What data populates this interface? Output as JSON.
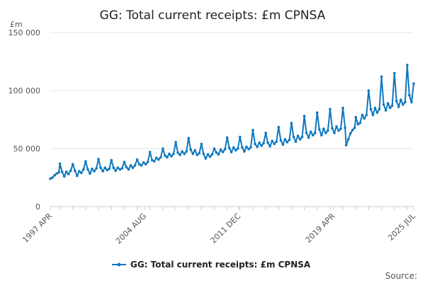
{
  "chart_data": {
    "type": "line",
    "title": "GG: Total current receipts: £m CPNSA",
    "y_unit": "£m",
    "ylim": [
      0,
      150000
    ],
    "yticks": [
      0,
      50000,
      100000,
      150000
    ],
    "ytick_labels": [
      "0",
      "50 000",
      "100 000",
      "150 000"
    ],
    "x_range": [
      "1997-04",
      "2025-07"
    ],
    "xtick_labels": [
      {
        "date": "1997-04",
        "label": "1997 APR"
      },
      {
        "date": "2004-08",
        "label": "2004 AUG"
      },
      {
        "date": "2011-12",
        "label": "2011 DEC"
      },
      {
        "date": "2019-04",
        "label": "2019 APR"
      },
      {
        "date": "2025-07",
        "label": "2025 JUL"
      }
    ],
    "grid": true,
    "legend_position": "bottom",
    "series": [
      {
        "name": "GG: Total current receipts: £m CPNSA",
        "color": "#0f78be",
        "points": [
          [
            "1997-04",
            24000
          ],
          [
            "1997-06",
            25000
          ],
          [
            "1997-08",
            27000
          ],
          [
            "1997-10",
            28500
          ],
          [
            "1997-12",
            29500
          ],
          [
            "1998-01",
            37000
          ],
          [
            "1998-03",
            30000
          ],
          [
            "1998-05",
            26000
          ],
          [
            "1998-07",
            30000
          ],
          [
            "1998-09",
            28000
          ],
          [
            "1998-11",
            31000
          ],
          [
            "1999-01",
            36500
          ],
          [
            "1999-03",
            31000
          ],
          [
            "1999-05",
            26500
          ],
          [
            "1999-07",
            30500
          ],
          [
            "1999-09",
            29000
          ],
          [
            "1999-11",
            32000
          ],
          [
            "2000-01",
            39000
          ],
          [
            "2000-03",
            32000
          ],
          [
            "2000-05",
            28500
          ],
          [
            "2000-07",
            32500
          ],
          [
            "2000-09",
            30500
          ],
          [
            "2000-11",
            33000
          ],
          [
            "2001-01",
            41000
          ],
          [
            "2001-03",
            33500
          ],
          [
            "2001-05",
            30500
          ],
          [
            "2001-07",
            33500
          ],
          [
            "2001-09",
            31500
          ],
          [
            "2001-11",
            32500
          ],
          [
            "2002-01",
            40000
          ],
          [
            "2002-03",
            33500
          ],
          [
            "2002-05",
            31000
          ],
          [
            "2002-07",
            33500
          ],
          [
            "2002-09",
            32000
          ],
          [
            "2002-11",
            33000
          ],
          [
            "2003-01",
            38500
          ],
          [
            "2003-03",
            34000
          ],
          [
            "2003-05",
            32000
          ],
          [
            "2003-07",
            35500
          ],
          [
            "2003-09",
            33500
          ],
          [
            "2003-11",
            35500
          ],
          [
            "2004-01",
            40500
          ],
          [
            "2004-03",
            36500
          ],
          [
            "2004-05",
            35500
          ],
          [
            "2004-07",
            38000
          ],
          [
            "2004-09",
            36500
          ],
          [
            "2004-11",
            38500
          ],
          [
            "2005-01",
            47000
          ],
          [
            "2005-03",
            40000
          ],
          [
            "2005-05",
            39000
          ],
          [
            "2005-07",
            42000
          ],
          [
            "2005-09",
            40500
          ],
          [
            "2005-11",
            42500
          ],
          [
            "2006-01",
            50000
          ],
          [
            "2006-03",
            44000
          ],
          [
            "2006-05",
            42500
          ],
          [
            "2006-07",
            45500
          ],
          [
            "2006-09",
            43500
          ],
          [
            "2006-11",
            45500
          ],
          [
            "2007-01",
            55500
          ],
          [
            "2007-03",
            46500
          ],
          [
            "2007-05",
            44500
          ],
          [
            "2007-07",
            47500
          ],
          [
            "2007-09",
            45500
          ],
          [
            "2007-11",
            47500
          ],
          [
            "2008-01",
            59000
          ],
          [
            "2008-03",
            49000
          ],
          [
            "2008-05",
            45500
          ],
          [
            "2008-07",
            48500
          ],
          [
            "2008-09",
            44500
          ],
          [
            "2008-11",
            46000
          ],
          [
            "2009-01",
            54000
          ],
          [
            "2009-03",
            45500
          ],
          [
            "2009-05",
            41500
          ],
          [
            "2009-07",
            45000
          ],
          [
            "2009-09",
            43000
          ],
          [
            "2009-11",
            45000
          ],
          [
            "2010-01",
            50000
          ],
          [
            "2010-03",
            46500
          ],
          [
            "2010-05",
            45000
          ],
          [
            "2010-07",
            49000
          ],
          [
            "2010-09",
            47000
          ],
          [
            "2010-11",
            49500
          ],
          [
            "2011-01",
            59500
          ],
          [
            "2011-03",
            50500
          ],
          [
            "2011-05",
            47000
          ],
          [
            "2011-07",
            51000
          ],
          [
            "2011-09",
            48500
          ],
          [
            "2011-11",
            50000
          ],
          [
            "2012-01",
            60000
          ],
          [
            "2012-03",
            51000
          ],
          [
            "2012-05",
            47500
          ],
          [
            "2012-07",
            51500
          ],
          [
            "2012-09",
            49500
          ],
          [
            "2012-11",
            51000
          ],
          [
            "2013-01",
            66000
          ],
          [
            "2013-03",
            54000
          ],
          [
            "2013-05",
            51500
          ],
          [
            "2013-07",
            55000
          ],
          [
            "2013-09",
            52500
          ],
          [
            "2013-11",
            54500
          ],
          [
            "2014-01",
            63500
          ],
          [
            "2014-03",
            55000
          ],
          [
            "2014-05",
            52000
          ],
          [
            "2014-07",
            56500
          ],
          [
            "2014-09",
            54000
          ],
          [
            "2014-11",
            56000
          ],
          [
            "2015-01",
            68500
          ],
          [
            "2015-03",
            57000
          ],
          [
            "2015-05",
            53500
          ],
          [
            "2015-07",
            58000
          ],
          [
            "2015-09",
            55500
          ],
          [
            "2015-11",
            57500
          ],
          [
            "2016-01",
            72000
          ],
          [
            "2016-03",
            60000
          ],
          [
            "2016-05",
            56000
          ],
          [
            "2016-07",
            61000
          ],
          [
            "2016-09",
            58000
          ],
          [
            "2016-11",
            60000
          ],
          [
            "2017-01",
            78000
          ],
          [
            "2017-03",
            63500
          ],
          [
            "2017-05",
            59500
          ],
          [
            "2017-07",
            64500
          ],
          [
            "2017-09",
            61500
          ],
          [
            "2017-11",
            63500
          ],
          [
            "2018-01",
            81000
          ],
          [
            "2018-03",
            66500
          ],
          [
            "2018-05",
            61500
          ],
          [
            "2018-07",
            67000
          ],
          [
            "2018-09",
            63500
          ],
          [
            "2018-11",
            65500
          ],
          [
            "2019-01",
            84000
          ],
          [
            "2019-03",
            67500
          ],
          [
            "2019-05",
            63500
          ],
          [
            "2019-07",
            69000
          ],
          [
            "2019-09",
            65500
          ],
          [
            "2019-11",
            67000
          ],
          [
            "2020-01",
            85000
          ],
          [
            "2020-03",
            68000
          ],
          [
            "2020-04",
            53000
          ],
          [
            "2020-06",
            58000
          ],
          [
            "2020-08",
            63000
          ],
          [
            "2020-10",
            66000
          ],
          [
            "2020-12",
            68000
          ],
          [
            "2021-01",
            77000
          ],
          [
            "2021-03",
            71000
          ],
          [
            "2021-05",
            72000
          ],
          [
            "2021-07",
            79000
          ],
          [
            "2021-09",
            76000
          ],
          [
            "2021-11",
            79000
          ],
          [
            "2022-01",
            100000
          ],
          [
            "2022-03",
            84000
          ],
          [
            "2022-05",
            79000
          ],
          [
            "2022-07",
            85000
          ],
          [
            "2022-09",
            81000
          ],
          [
            "2022-11",
            84000
          ],
          [
            "2023-01",
            112000
          ],
          [
            "2023-03",
            88000
          ],
          [
            "2023-05",
            83000
          ],
          [
            "2023-07",
            89000
          ],
          [
            "2023-09",
            85000
          ],
          [
            "2023-11",
            87000
          ],
          [
            "2024-01",
            115000
          ],
          [
            "2024-03",
            91000
          ],
          [
            "2024-05",
            86000
          ],
          [
            "2024-07",
            92000
          ],
          [
            "2024-09",
            88000
          ],
          [
            "2024-11",
            90000
          ],
          [
            "2025-01",
            122000
          ],
          [
            "2025-03",
            96000
          ],
          [
            "2025-05",
            90000
          ],
          [
            "2025-07",
            106000
          ]
        ]
      }
    ]
  },
  "legend": {
    "label": "GG: Total current receipts: £m CPNSA"
  },
  "footer": {
    "source_label": "Source:"
  }
}
